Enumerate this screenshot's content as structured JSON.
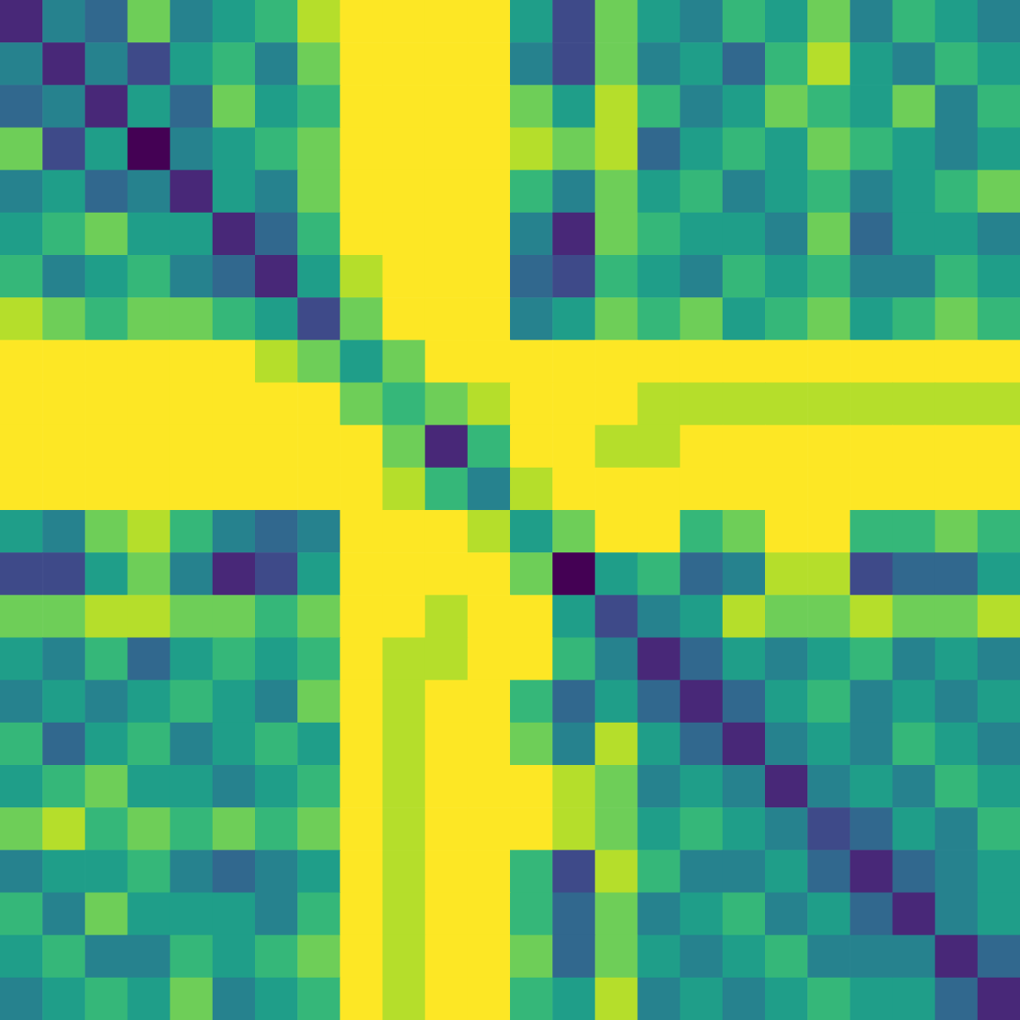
{
  "chart_data": {
    "type": "heatmap",
    "tick_labels": false,
    "cells": [
      [
        0.2,
        0.5,
        0.4,
        0.8,
        0.5,
        0.6,
        0.7,
        0.9,
        1,
        1,
        1,
        1,
        0.6,
        0.3,
        0.8,
        0.6,
        0.5,
        0.7,
        0.6,
        0.8,
        0.5,
        0.7,
        0.6,
        0.5
      ],
      [
        0.5,
        0.2,
        0.5,
        0.3,
        0.6,
        0.7,
        0.5,
        0.8,
        1,
        1,
        1,
        1,
        0.5,
        0.3,
        0.8,
        0.5,
        0.6,
        0.4,
        0.7,
        0.9,
        0.6,
        0.5,
        0.7,
        0.6
      ],
      [
        0.4,
        0.5,
        0.2,
        0.6,
        0.4,
        0.8,
        0.6,
        0.7,
        1,
        1,
        1,
        1,
        0.8,
        0.6,
        0.9,
        0.7,
        0.5,
        0.6,
        0.8,
        0.7,
        0.6,
        0.8,
        0.5,
        0.7
      ],
      [
        0.8,
        0.3,
        0.6,
        0.1,
        0.5,
        0.6,
        0.7,
        0.8,
        1,
        1,
        1,
        1,
        0.9,
        0.8,
        0.9,
        0.4,
        0.6,
        0.7,
        0.6,
        0.8,
        0.7,
        0.6,
        0.5,
        0.6
      ],
      [
        0.5,
        0.6,
        0.4,
        0.5,
        0.2,
        0.6,
        0.5,
        0.8,
        1,
        1,
        1,
        1,
        0.7,
        0.5,
        0.8,
        0.6,
        0.7,
        0.5,
        0.6,
        0.7,
        0.5,
        0.6,
        0.7,
        0.8
      ],
      [
        0.6,
        0.7,
        0.8,
        0.6,
        0.6,
        0.2,
        0.4,
        0.7,
        1,
        1,
        1,
        1,
        0.5,
        0.2,
        0.8,
        0.7,
        0.6,
        0.6,
        0.5,
        0.8,
        0.4,
        0.6,
        0.6,
        0.5
      ],
      [
        0.7,
        0.5,
        0.6,
        0.7,
        0.5,
        0.4,
        0.2,
        0.6,
        0.9,
        1,
        1,
        1,
        0.4,
        0.3,
        0.7,
        0.6,
        0.5,
        0.7,
        0.6,
        0.7,
        0.5,
        0.5,
        0.7,
        0.6
      ],
      [
        0.9,
        0.8,
        0.7,
        0.8,
        0.8,
        0.7,
        0.6,
        0.3,
        0.8,
        1,
        1,
        1,
        0.5,
        0.6,
        0.8,
        0.7,
        0.8,
        0.6,
        0.7,
        0.8,
        0.6,
        0.7,
        0.8,
        0.7
      ],
      [
        1,
        1,
        1,
        1,
        1,
        1,
        0.9,
        0.8,
        0.6,
        0.8,
        1,
        1,
        1,
        1,
        1,
        1,
        1,
        1,
        1,
        1,
        1,
        1,
        1,
        1
      ],
      [
        1,
        1,
        1,
        1,
        1,
        1,
        1,
        1,
        0.8,
        0.7,
        0.8,
        0.9,
        1,
        1,
        1,
        0.9,
        0.9,
        0.9,
        0.9,
        0.9,
        0.9,
        0.9,
        0.9,
        0.9
      ],
      [
        1,
        1,
        1,
        1,
        1,
        1,
        1,
        1,
        1,
        0.8,
        0.2,
        0.7,
        1,
        1,
        0.9,
        0.9,
        1,
        1,
        1,
        1,
        1,
        1,
        1,
        1
      ],
      [
        1,
        1,
        1,
        1,
        1,
        1,
        1,
        1,
        1,
        0.9,
        0.7,
        0.5,
        0.9,
        1,
        1,
        1,
        1,
        1,
        1,
        1,
        1,
        1,
        1,
        1
      ],
      [
        0.6,
        0.5,
        0.8,
        0.9,
        0.7,
        0.5,
        0.4,
        0.5,
        1,
        1,
        1,
        0.9,
        0.6,
        0.8,
        1,
        1,
        0.7,
        0.8,
        1,
        1,
        0.7,
        0.7,
        0.8,
        0.7
      ],
      [
        0.3,
        0.3,
        0.6,
        0.8,
        0.5,
        0.2,
        0.3,
        0.6,
        1,
        1,
        1,
        1,
        0.8,
        0.1,
        0.6,
        0.7,
        0.4,
        0.5,
        0.9,
        0.9,
        0.3,
        0.4,
        0.4,
        0.6
      ],
      [
        0.8,
        0.8,
        0.9,
        0.9,
        0.8,
        0.8,
        0.7,
        0.8,
        1,
        1,
        0.9,
        1,
        1,
        0.6,
        0.3,
        0.5,
        0.6,
        0.9,
        0.8,
        0.8,
        0.9,
        0.8,
        0.8,
        0.9
      ],
      [
        0.6,
        0.5,
        0.7,
        0.4,
        0.6,
        0.7,
        0.6,
        0.7,
        1,
        0.9,
        0.9,
        1,
        1,
        0.7,
        0.5,
        0.2,
        0.4,
        0.6,
        0.5,
        0.6,
        0.7,
        0.5,
        0.6,
        0.5
      ],
      [
        0.5,
        0.6,
        0.5,
        0.6,
        0.7,
        0.6,
        0.5,
        0.8,
        1,
        0.9,
        1,
        1,
        0.7,
        0.4,
        0.6,
        0.4,
        0.2,
        0.4,
        0.6,
        0.7,
        0.5,
        0.6,
        0.5,
        0.6
      ],
      [
        0.7,
        0.4,
        0.6,
        0.7,
        0.5,
        0.6,
        0.7,
        0.6,
        1,
        0.9,
        1,
        1,
        0.8,
        0.5,
        0.9,
        0.6,
        0.4,
        0.2,
        0.5,
        0.6,
        0.5,
        0.7,
        0.6,
        0.5
      ],
      [
        0.6,
        0.7,
        0.8,
        0.6,
        0.6,
        0.5,
        0.6,
        0.7,
        1,
        0.9,
        1,
        1,
        1,
        0.9,
        0.8,
        0.5,
        0.6,
        0.5,
        0.2,
        0.5,
        0.6,
        0.5,
        0.7,
        0.6
      ],
      [
        0.8,
        0.9,
        0.7,
        0.8,
        0.7,
        0.8,
        0.7,
        0.8,
        1,
        0.9,
        1,
        1,
        1,
        0.9,
        0.8,
        0.6,
        0.7,
        0.6,
        0.5,
        0.3,
        0.4,
        0.6,
        0.5,
        0.7
      ],
      [
        0.5,
        0.6,
        0.6,
        0.7,
        0.5,
        0.4,
        0.5,
        0.6,
        1,
        0.9,
        1,
        1,
        0.7,
        0.3,
        0.9,
        0.7,
        0.5,
        0.5,
        0.6,
        0.4,
        0.2,
        0.4,
        0.5,
        0.6
      ],
      [
        0.7,
        0.5,
        0.8,
        0.6,
        0.6,
        0.6,
        0.5,
        0.7,
        1,
        0.9,
        1,
        1,
        0.7,
        0.4,
        0.8,
        0.5,
        0.6,
        0.7,
        0.5,
        0.6,
        0.4,
        0.2,
        0.5,
        0.6
      ],
      [
        0.6,
        0.7,
        0.5,
        0.5,
        0.7,
        0.6,
        0.7,
        0.8,
        1,
        0.9,
        1,
        1,
        0.8,
        0.4,
        0.8,
        0.6,
        0.5,
        0.6,
        0.7,
        0.5,
        0.5,
        0.5,
        0.2,
        0.4
      ],
      [
        0.5,
        0.6,
        0.7,
        0.6,
        0.8,
        0.5,
        0.6,
        0.7,
        1,
        0.9,
        1,
        1,
        0.7,
        0.6,
        0.9,
        0.5,
        0.6,
        0.5,
        0.6,
        0.7,
        0.6,
        0.6,
        0.4,
        0.2
      ]
    ]
  }
}
